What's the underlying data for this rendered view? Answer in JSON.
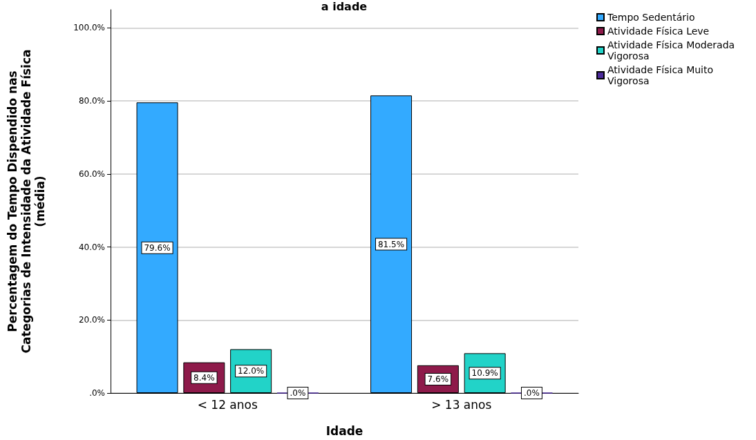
{
  "chart_data": {
    "type": "bar",
    "title": "a idade",
    "xlabel": "Idade",
    "ylabel": "Percentagem do Tempo Dispendido nas\nCategorias de Intensidade da Atividade Física\n(média)",
    "categories": [
      "< 12 anos",
      "> 13 anos"
    ],
    "series": [
      {
        "name": "Tempo Sedentário",
        "color": "#33aaff",
        "values": [
          79.6,
          81.5
        ],
        "value_labels": [
          "79.6%",
          "81.5%"
        ]
      },
      {
        "name": "Atividade Física Leve",
        "color": "#8e1a4a",
        "values": [
          8.4,
          7.6
        ],
        "value_labels": [
          "8.4%",
          "7.6%"
        ]
      },
      {
        "name": "Atividade Física Moderada Vigorosa",
        "color": "#22d3c8",
        "values": [
          12.0,
          10.9
        ],
        "value_labels": [
          "12.0%",
          "10.9%"
        ]
      },
      {
        "name": "Atividade Física Muito Vigorosa",
        "color": "#4b2a9a",
        "values": [
          0.0,
          0.0
        ],
        "value_labels": [
          ".0%",
          ".0%"
        ]
      }
    ],
    "ylim": [
      0,
      105
    ],
    "yticks": [
      {
        "value": 0,
        "label": ".0%"
      },
      {
        "value": 20,
        "label": "20.0%"
      },
      {
        "value": 40,
        "label": "40.0%"
      },
      {
        "value": 60,
        "label": "60.0%"
      },
      {
        "value": 80,
        "label": "80.0%"
      },
      {
        "value": 100,
        "label": "100.0%"
      }
    ],
    "grid": "y",
    "legend": "top right"
  }
}
